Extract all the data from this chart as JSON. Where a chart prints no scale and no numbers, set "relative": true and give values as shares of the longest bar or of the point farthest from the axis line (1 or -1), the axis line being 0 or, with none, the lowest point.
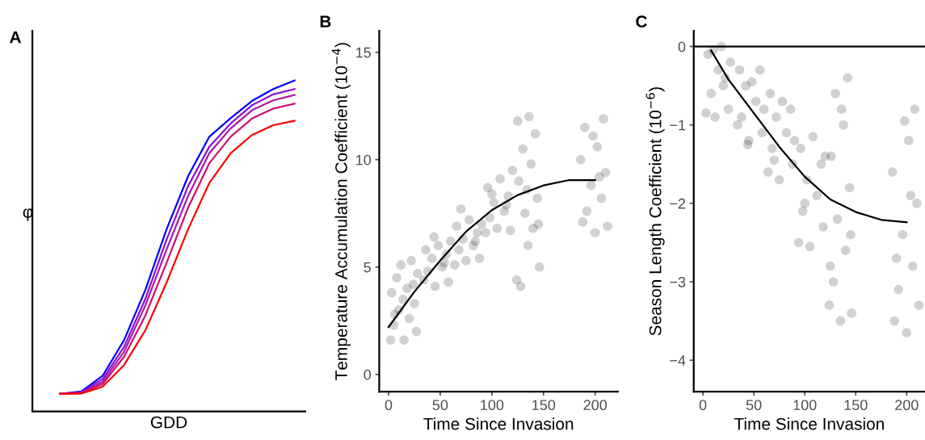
{
  "chart_data": [
    {
      "type": "line",
      "title": "A",
      "xlabel": "GDD",
      "ylabel": "φ",
      "relative": true,
      "tick_labels": false,
      "grid": false,
      "categories": [
        null,
        null,
        null,
        null,
        null,
        null,
        null,
        null,
        null,
        null,
        null,
        null
      ],
      "series": [
        {
          "color": "#0000ff",
          "values": [
            0.053,
            0.06,
            0.108,
            0.215,
            0.367,
            0.551,
            0.71,
            0.83,
            0.886,
            0.938,
            0.974,
            1.0
          ]
        },
        {
          "color": "#8a10d8",
          "values": [
            0.053,
            0.058,
            0.098,
            0.195,
            0.34,
            0.52,
            0.68,
            0.8,
            0.87,
            0.925,
            0.958,
            0.974
          ]
        },
        {
          "color": "#aa1aa8",
          "values": [
            0.053,
            0.056,
            0.09,
            0.18,
            0.32,
            0.49,
            0.65,
            0.78,
            0.855,
            0.91,
            0.94,
            0.956
          ]
        },
        {
          "color": "#cc1070",
          "values": [
            0.053,
            0.055,
            0.083,
            0.165,
            0.29,
            0.45,
            0.615,
            0.75,
            0.83,
            0.885,
            0.915,
            0.93
          ]
        },
        {
          "color": "#ff0000",
          "values": [
            0.053,
            0.054,
            0.075,
            0.14,
            0.245,
            0.39,
            0.55,
            0.69,
            0.78,
            0.835,
            0.865,
            0.878
          ]
        }
      ]
    },
    {
      "type": "scatter",
      "title": "B",
      "xlabel": "Time Since Invasion",
      "ylabel": "Temperature Accumulation Coefficient (10$^{−4}$)",
      "grid": false,
      "xlim": [
        -9,
        222
      ],
      "ylim": [
        -0.8,
        16
      ],
      "xticks": [
        0,
        50,
        100,
        150,
        200
      ],
      "yticks": [
        0,
        5,
        10,
        15
      ],
      "series": [
        {
          "type": "scatter",
          "color": "#000000",
          "marker": "circle",
          "x": [
            2,
            15,
            27,
            5,
            20,
            10,
            25,
            3,
            18,
            8,
            28,
            12,
            22,
            14,
            6,
            24,
            34,
            45,
            58,
            38,
            52,
            42,
            56,
            36,
            48,
            60,
            44,
            54,
            64,
            75,
            88,
            68,
            82,
            72,
            86,
            66,
            78,
            90,
            70,
            84,
            94,
            105,
            118,
            98,
            112,
            102,
            116,
            96,
            108,
            120,
            100,
            114,
            124,
            135,
            146,
            128,
            140,
            132,
            144,
            126,
            138,
            130,
            142,
            136,
            125,
            145,
            134,
            188,
            200,
            212,
            192,
            206,
            196,
            210,
            186,
            202,
            198,
            208,
            190,
            204
          ],
          "values": [
            1.6,
            1.6,
            2.0,
            2.3,
            2.6,
            3.0,
            3.3,
            3.8,
            4.0,
            4.5,
            4.7,
            5.1,
            5.3,
            3.5,
            2.8,
            4.2,
            4.4,
            4.1,
            4.3,
            4.8,
            5.0,
            5.4,
            5.6,
            5.8,
            6.0,
            6.2,
            6.4,
            5.2,
            5.1,
            5.3,
            5.4,
            5.8,
            6.0,
            6.3,
            6.6,
            6.9,
            7.2,
            7.0,
            7.7,
            6.2,
            6.6,
            6.8,
            6.7,
            7.3,
            7.6,
            8.0,
            8.3,
            8.7,
            9.1,
            9.5,
            8.4,
            7.9,
            4.4,
            6.0,
            5.0,
            4.1,
            6.8,
            7.5,
            8.2,
            9.0,
            9.8,
            10.5,
            11.2,
            12.0,
            11.8,
            7.0,
            8.6,
            7.1,
            6.6,
            6.9,
            7.6,
            8.2,
            8.8,
            9.4,
            10.0,
            10.6,
            11.1,
            11.9,
            11.5,
            9.2
          ]
        },
        {
          "type": "line",
          "color": "#000000",
          "x": [
            0,
            25,
            50,
            75,
            100,
            125,
            150,
            175,
            200
          ],
          "values": [
            2.2,
            3.85,
            5.3,
            6.65,
            7.65,
            8.35,
            8.8,
            9.05,
            9.05
          ]
        }
      ]
    },
    {
      "type": "scatter",
      "title": "C",
      "xlabel": "Time Since Invasion",
      "ylabel": "Season Length Coefficient (10$^{−6}$)",
      "grid": false,
      "xlim": [
        -9,
        218
      ],
      "ylim": [
        -4.4,
        0.2
      ],
      "xticks": [
        0,
        50,
        100,
        150,
        200
      ],
      "yticks": [
        0,
        -1,
        -2,
        -3,
        -4
      ],
      "ref_lines": [
        {
          "axis": "y",
          "value": 0,
          "color": "#000000"
        }
      ],
      "series": [
        {
          "type": "scatter",
          "color": "#000000",
          "marker": "circle",
          "x": [
            3,
            12,
            25,
            8,
            20,
            15,
            27,
            5,
            18,
            10,
            22,
            34,
            45,
            58,
            38,
            52,
            42,
            56,
            36,
            48,
            60,
            44,
            64,
            75,
            88,
            68,
            82,
            72,
            86,
            66,
            78,
            90,
            70,
            94,
            105,
            118,
            98,
            112,
            102,
            116,
            96,
            108,
            120,
            100,
            124,
            135,
            146,
            128,
            140,
            132,
            144,
            126,
            138,
            130,
            142,
            136,
            125,
            145,
            188,
            200,
            212,
            192,
            206,
            196,
            210,
            186,
            202,
            198,
            208,
            190,
            204
          ],
          "values": [
            -0.85,
            -0.9,
            -0.8,
            -0.6,
            -0.5,
            -0.3,
            -0.2,
            -0.1,
            0.0,
            -0.05,
            -0.4,
            -1.0,
            -1.2,
            -1.1,
            -0.9,
            -0.7,
            -0.5,
            -0.3,
            -0.3,
            -0.45,
            -0.8,
            -1.25,
            -1.6,
            -1.7,
            -1.5,
            -1.3,
            -1.1,
            -0.9,
            -0.8,
            -0.6,
            -0.7,
            -1.2,
            -1.45,
            -2.5,
            -2.55,
            -2.3,
            -2.1,
            -1.9,
            -1.7,
            -1.5,
            -1.3,
            -1.15,
            -1.4,
            -2.0,
            -3.3,
            -3.5,
            -3.4,
            -3.0,
            -2.6,
            -2.2,
            -1.8,
            -1.4,
            -1.0,
            -0.6,
            -0.4,
            -0.8,
            -2.8,
            -2.4,
            -3.5,
            -3.65,
            -3.3,
            -3.1,
            -2.8,
            -2.4,
            -2.0,
            -1.6,
            -1.2,
            -0.95,
            -0.8,
            -2.7,
            -1.9
          ]
        },
        {
          "type": "line",
          "color": "#000000",
          "x": [
            8,
            25,
            50,
            75,
            100,
            125,
            150,
            175,
            200
          ],
          "values": [
            -0.05,
            -0.42,
            -0.85,
            -1.28,
            -1.66,
            -1.95,
            -2.11,
            -2.21,
            -2.24
          ]
        }
      ]
    }
  ]
}
